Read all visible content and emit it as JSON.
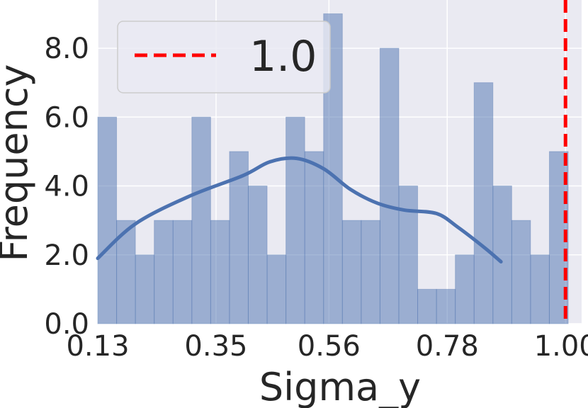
{
  "chart_data": {
    "type": "bar",
    "xlabel": "Sigma_y",
    "ylabel": "Frequency",
    "x_ticks": [
      "0.13",
      "0.35",
      "0.56",
      "0.78",
      "1.00"
    ],
    "x_tick_values": [
      0.13,
      0.35,
      0.56,
      0.78,
      1.0
    ],
    "y_ticks": [
      "0.0",
      "2.0",
      "4.0",
      "6.0",
      "8.0"
    ],
    "y_tick_values": [
      0,
      2,
      4,
      6,
      8
    ],
    "xlim": [
      0.13,
      1.03
    ],
    "ylim": [
      0,
      9.4
    ],
    "bin_start": 0.13,
    "bin_width": 0.035,
    "counts": [
      6,
      3,
      2,
      3,
      3,
      6,
      3,
      5,
      4,
      2,
      6,
      5,
      9,
      3,
      3,
      8,
      4,
      1,
      1,
      2,
      7,
      4,
      3,
      2,
      5
    ],
    "kde": {
      "x": [
        0.13,
        0.2,
        0.3,
        0.4,
        0.45,
        0.5,
        0.55,
        0.6,
        0.65,
        0.7,
        0.76,
        0.8,
        0.85,
        0.88
      ],
      "y": [
        1.9,
        2.9,
        3.7,
        4.3,
        4.7,
        4.8,
        4.5,
        3.9,
        3.5,
        3.3,
        3.2,
        2.8,
        2.2,
        1.8
      ]
    },
    "reference_line": {
      "x": 1.0,
      "label": "1.0",
      "color": "#ff0000"
    },
    "bar_color": "#4c72b0",
    "grid": true,
    "legend_position": "top-left"
  }
}
